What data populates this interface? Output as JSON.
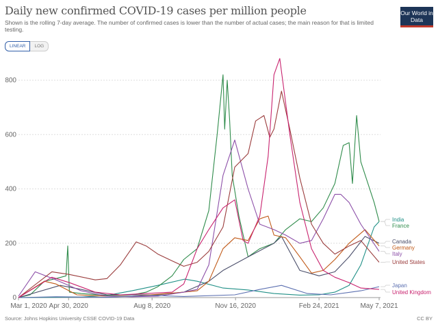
{
  "header": {
    "title": "Daily new confirmed COVID-19 cases per million people",
    "subtitle": "Shown is the rolling 7-day average. The number of confirmed cases is lower than the number of actual cases; the main reason for that is limited testing.",
    "logo": "Our World in Data"
  },
  "controls": {
    "linear": "LINEAR",
    "log": "LOG",
    "selected": "LINEAR"
  },
  "footer": {
    "source": "Source: Johns Hopkins University CSSE COVID-19 Data",
    "license": "CC BY"
  },
  "chart_data": {
    "type": "line",
    "title": "Daily new confirmed COVID-19 cases per million people",
    "ylim": [
      0,
      880
    ],
    "xlim": [
      "2020-03-01",
      "2021-05-07"
    ],
    "grid": true,
    "legend": "right, end-of-line labels",
    "yticks": [
      0,
      200,
      400,
      600,
      800
    ],
    "xticks": [
      {
        "date": "2020-03-01",
        "label": "Mar 1, 2020"
      },
      {
        "date": "2020-04-30",
        "label": "Apr 30, 2020"
      },
      {
        "date": "2020-08-08",
        "label": "Aug 8, 2020"
      },
      {
        "date": "2020-11-16",
        "label": "Nov 16, 2020"
      },
      {
        "date": "2021-02-24",
        "label": "Feb 24, 2021"
      },
      {
        "date": "2021-05-07",
        "label": "May 7, 2021"
      }
    ],
    "series": [
      {
        "name": "India",
        "color": "#1f8f86",
        "points": [
          [
            "2020-03-01",
            0
          ],
          [
            "2020-04-15",
            1
          ],
          [
            "2020-05-15",
            2
          ],
          [
            "2020-06-15",
            8
          ],
          [
            "2020-07-15",
            25
          ],
          [
            "2020-08-15",
            45
          ],
          [
            "2020-09-16",
            68
          ],
          [
            "2020-10-01",
            60
          ],
          [
            "2020-11-01",
            35
          ],
          [
            "2020-12-01",
            28
          ],
          [
            "2021-01-01",
            15
          ],
          [
            "2021-02-01",
            9
          ],
          [
            "2021-02-24",
            10
          ],
          [
            "2021-03-15",
            20
          ],
          [
            "2021-04-01",
            45
          ],
          [
            "2021-04-15",
            120
          ],
          [
            "2021-05-01",
            260
          ],
          [
            "2021-05-07",
            280
          ]
        ]
      },
      {
        "name": "France",
        "color": "#2e8b4a",
        "points": [
          [
            "2020-03-01",
            0
          ],
          [
            "2020-03-15",
            10
          ],
          [
            "2020-04-01",
            60
          ],
          [
            "2020-04-15",
            70
          ],
          [
            "2020-04-27",
            80
          ],
          [
            "2020-04-29",
            190
          ],
          [
            "2020-05-01",
            20
          ],
          [
            "2020-05-15",
            15
          ],
          [
            "2020-06-15",
            8
          ],
          [
            "2020-07-15",
            10
          ],
          [
            "2020-08-01",
            20
          ],
          [
            "2020-08-15",
            40
          ],
          [
            "2020-09-01",
            80
          ],
          [
            "2020-09-15",
            140
          ],
          [
            "2020-10-01",
            180
          ],
          [
            "2020-10-15",
            320
          ],
          [
            "2020-10-25",
            600
          ],
          [
            "2020-11-01",
            820
          ],
          [
            "2020-11-03",
            620
          ],
          [
            "2020-11-06",
            800
          ],
          [
            "2020-11-09",
            650
          ],
          [
            "2020-11-12",
            450
          ],
          [
            "2020-11-20",
            300
          ],
          [
            "2020-12-01",
            150
          ],
          [
            "2020-12-15",
            180
          ],
          [
            "2021-01-01",
            200
          ],
          [
            "2021-01-15",
            250
          ],
          [
            "2021-02-01",
            290
          ],
          [
            "2021-02-15",
            280
          ],
          [
            "2021-03-01",
            330
          ],
          [
            "2021-03-15",
            420
          ],
          [
            "2021-03-25",
            560
          ],
          [
            "2021-04-01",
            570
          ],
          [
            "2021-04-05",
            420
          ],
          [
            "2021-04-10",
            670
          ],
          [
            "2021-04-15",
            500
          ],
          [
            "2021-05-01",
            350
          ],
          [
            "2021-05-07",
            280
          ]
        ]
      },
      {
        "name": "Canada",
        "color": "#4a4e6a",
        "points": [
          [
            "2020-03-01",
            0
          ],
          [
            "2020-04-20",
            45
          ],
          [
            "2020-05-15",
            30
          ],
          [
            "2020-06-15",
            10
          ],
          [
            "2020-07-15",
            10
          ],
          [
            "2020-08-15",
            10
          ],
          [
            "2020-09-15",
            20
          ],
          [
            "2020-10-15",
            60
          ],
          [
            "2020-11-01",
            100
          ],
          [
            "2020-12-01",
            150
          ],
          [
            "2021-01-01",
            200
          ],
          [
            "2021-01-10",
            225
          ],
          [
            "2021-02-01",
            100
          ],
          [
            "2021-02-24",
            80
          ],
          [
            "2021-03-15",
            95
          ],
          [
            "2021-04-01",
            150
          ],
          [
            "2021-04-20",
            225
          ],
          [
            "2021-05-07",
            200
          ]
        ]
      },
      {
        "name": "Germany",
        "color": "#c05917",
        "points": [
          [
            "2020-03-01",
            0
          ],
          [
            "2020-04-01",
            60
          ],
          [
            "2020-04-15",
            50
          ],
          [
            "2020-05-10",
            10
          ],
          [
            "2020-06-15",
            5
          ],
          [
            "2020-07-15",
            5
          ],
          [
            "2020-08-15",
            12
          ],
          [
            "2020-09-15",
            20
          ],
          [
            "2020-10-01",
            25
          ],
          [
            "2020-10-15",
            60
          ],
          [
            "2020-11-01",
            180
          ],
          [
            "2020-11-15",
            220
          ],
          [
            "2020-12-01",
            210
          ],
          [
            "2020-12-15",
            290
          ],
          [
            "2020-12-25",
            300
          ],
          [
            "2021-01-01",
            230
          ],
          [
            "2021-01-15",
            220
          ],
          [
            "2021-02-01",
            150
          ],
          [
            "2021-02-15",
            90
          ],
          [
            "2021-03-01",
            100
          ],
          [
            "2021-03-15",
            140
          ],
          [
            "2021-04-01",
            200
          ],
          [
            "2021-04-20",
            250
          ],
          [
            "2021-05-07",
            190
          ]
        ]
      },
      {
        "name": "Italy",
        "color": "#8c4fa8",
        "points": [
          [
            "2020-03-01",
            5
          ],
          [
            "2020-03-21",
            95
          ],
          [
            "2020-04-15",
            65
          ],
          [
            "2020-05-15",
            25
          ],
          [
            "2020-06-15",
            5
          ],
          [
            "2020-07-15",
            3
          ],
          [
            "2020-08-15",
            5
          ],
          [
            "2020-09-15",
            20
          ],
          [
            "2020-10-01",
            30
          ],
          [
            "2020-10-15",
            120
          ],
          [
            "2020-11-01",
            450
          ],
          [
            "2020-11-15",
            580
          ],
          [
            "2020-12-01",
            400
          ],
          [
            "2020-12-15",
            270
          ],
          [
            "2021-01-01",
            250
          ],
          [
            "2021-01-15",
            230
          ],
          [
            "2021-02-01",
            200
          ],
          [
            "2021-02-15",
            210
          ],
          [
            "2021-03-01",
            290
          ],
          [
            "2021-03-15",
            380
          ],
          [
            "2021-03-22",
            380
          ],
          [
            "2021-04-01",
            350
          ],
          [
            "2021-04-15",
            270
          ],
          [
            "2021-05-07",
            170
          ]
        ]
      },
      {
        "name": "United States",
        "color": "#9a3b3b",
        "points": [
          [
            "2020-03-01",
            0
          ],
          [
            "2020-04-10",
            95
          ],
          [
            "2020-05-01",
            85
          ],
          [
            "2020-06-01",
            65
          ],
          [
            "2020-06-15",
            70
          ],
          [
            "2020-07-01",
            120
          ],
          [
            "2020-07-20",
            205
          ],
          [
            "2020-08-01",
            190
          ],
          [
            "2020-08-15",
            160
          ],
          [
            "2020-09-01",
            135
          ],
          [
            "2020-09-15",
            115
          ],
          [
            "2020-10-01",
            130
          ],
          [
            "2020-10-15",
            170
          ],
          [
            "2020-11-01",
            260
          ],
          [
            "2020-11-15",
            480
          ],
          [
            "2020-12-01",
            530
          ],
          [
            "2020-12-10",
            650
          ],
          [
            "2020-12-20",
            670
          ],
          [
            "2020-12-27",
            590
          ],
          [
            "2021-01-01",
            620
          ],
          [
            "2021-01-10",
            760
          ],
          [
            "2021-01-20",
            620
          ],
          [
            "2021-02-01",
            440
          ],
          [
            "2021-02-15",
            270
          ],
          [
            "2021-03-01",
            200
          ],
          [
            "2021-03-15",
            160
          ],
          [
            "2021-04-01",
            190
          ],
          [
            "2021-04-15",
            210
          ],
          [
            "2021-05-07",
            130
          ]
        ]
      },
      {
        "name": "Japan",
        "color": "#5b6fb0",
        "points": [
          [
            "2020-03-01",
            0
          ],
          [
            "2020-04-15",
            3
          ],
          [
            "2020-06-15",
            1
          ],
          [
            "2020-08-08",
            8
          ],
          [
            "2020-09-15",
            4
          ],
          [
            "2020-11-15",
            10
          ],
          [
            "2020-12-15",
            30
          ],
          [
            "2021-01-10",
            45
          ],
          [
            "2021-02-10",
            15
          ],
          [
            "2021-03-10",
            10
          ],
          [
            "2021-04-15",
            25
          ],
          [
            "2021-05-07",
            40
          ]
        ]
      },
      {
        "name": "United Kingdom",
        "color": "#c8226e",
        "points": [
          [
            "2020-03-01",
            0
          ],
          [
            "2020-04-10",
            75
          ],
          [
            "2020-05-01",
            55
          ],
          [
            "2020-06-01",
            20
          ],
          [
            "2020-07-01",
            10
          ],
          [
            "2020-08-01",
            15
          ],
          [
            "2020-09-01",
            20
          ],
          [
            "2020-09-15",
            50
          ],
          [
            "2020-10-01",
            180
          ],
          [
            "2020-10-15",
            250
          ],
          [
            "2020-11-01",
            330
          ],
          [
            "2020-11-15",
            360
          ],
          [
            "2020-11-25",
            210
          ],
          [
            "2020-12-01",
            200
          ],
          [
            "2020-12-15",
            300
          ],
          [
            "2020-12-25",
            520
          ],
          [
            "2021-01-01",
            820
          ],
          [
            "2021-01-08",
            880
          ],
          [
            "2021-01-20",
            600
          ],
          [
            "2021-02-01",
            350
          ],
          [
            "2021-02-15",
            180
          ],
          [
            "2021-03-01",
            100
          ],
          [
            "2021-03-15",
            75
          ],
          [
            "2021-04-01",
            55
          ],
          [
            "2021-04-15",
            35
          ],
          [
            "2021-05-07",
            30
          ]
        ]
      }
    ]
  }
}
